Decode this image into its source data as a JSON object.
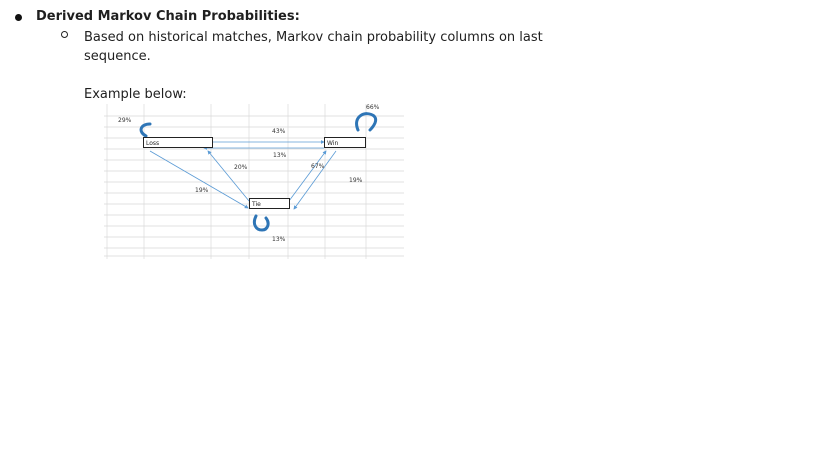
{
  "bullet": {
    "heading": "Derived Markov Chain Probabilities:"
  },
  "sub_bullet": {
    "text": "Based on historical matches, Markov chain probability columns on last sequence."
  },
  "example": {
    "label": "Example below:"
  },
  "diagram": {
    "nodes": {
      "loss": "Loss",
      "win": "Win",
      "tie": "Tie"
    },
    "labels": {
      "loss_self": "29%",
      "win_self": "66%",
      "loss_win_top": "43%",
      "win_loss_bottom": "13%",
      "tie_loss": "20%",
      "loss_tie": "19%",
      "tie_win": "67%",
      "win_tie": "19%",
      "tie_self": "13%"
    },
    "colors": {
      "arrow": "#5b9bd5",
      "loop": "#2e75b6",
      "grid": "#d9d9d9"
    }
  }
}
